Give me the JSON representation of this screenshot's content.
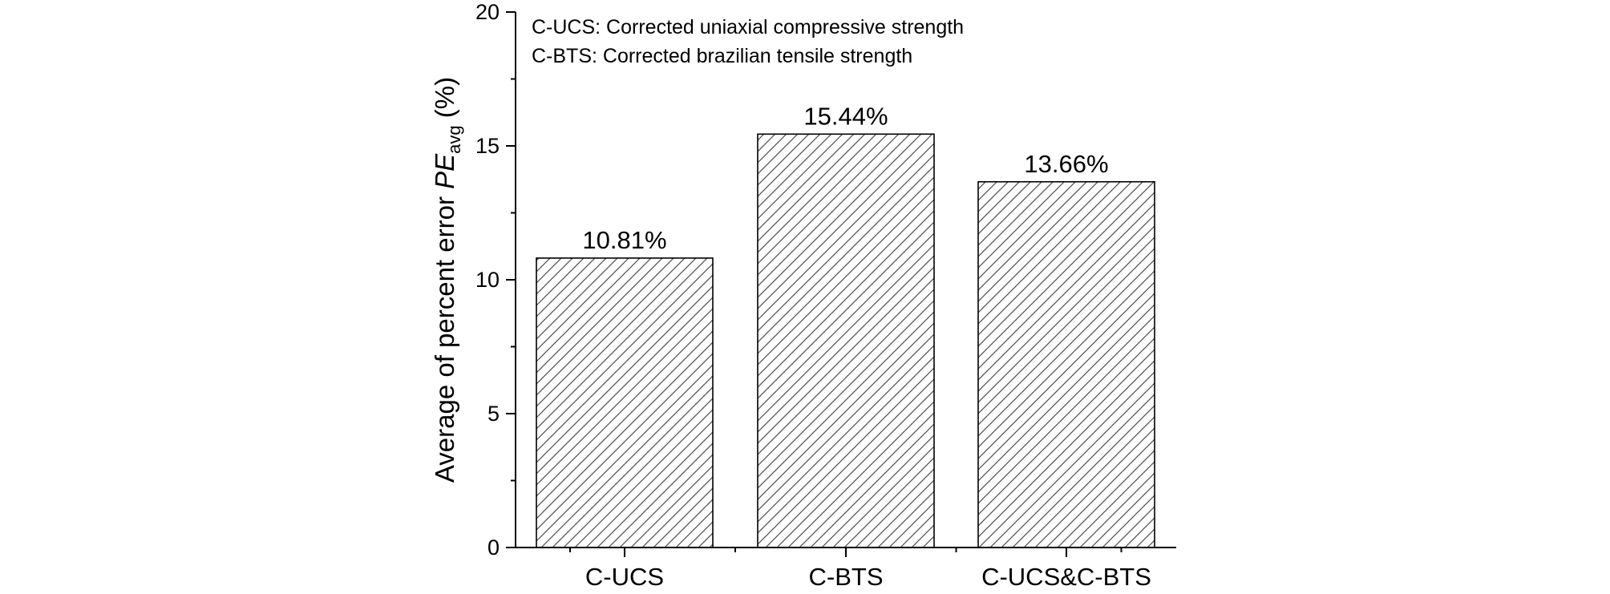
{
  "chart_data": {
    "type": "bar",
    "categories": [
      "C-UCS",
      "C-BTS",
      "C-UCS&C-BTS"
    ],
    "values": [
      10.81,
      15.44,
      13.66
    ],
    "data_labels": [
      "10.81%",
      "15.44%",
      "13.66%"
    ],
    "title": "",
    "xlabel": "",
    "ylabel": {
      "prefix": "Average of percent error ",
      "symbol": "PE",
      "subscript": "avg",
      "suffix": " (%)"
    },
    "ylim": [
      0,
      20
    ],
    "yticks": [
      0,
      5,
      10,
      15,
      20
    ],
    "grid": false,
    "bar_fill": "diagonal-hatch",
    "bar_color": "#ffffff",
    "edge_color": "#000000",
    "annotations": [
      "C-UCS: Corrected uniaxial compressive strength",
      "C-BTS: Corrected brazilian tensile strength"
    ]
  }
}
